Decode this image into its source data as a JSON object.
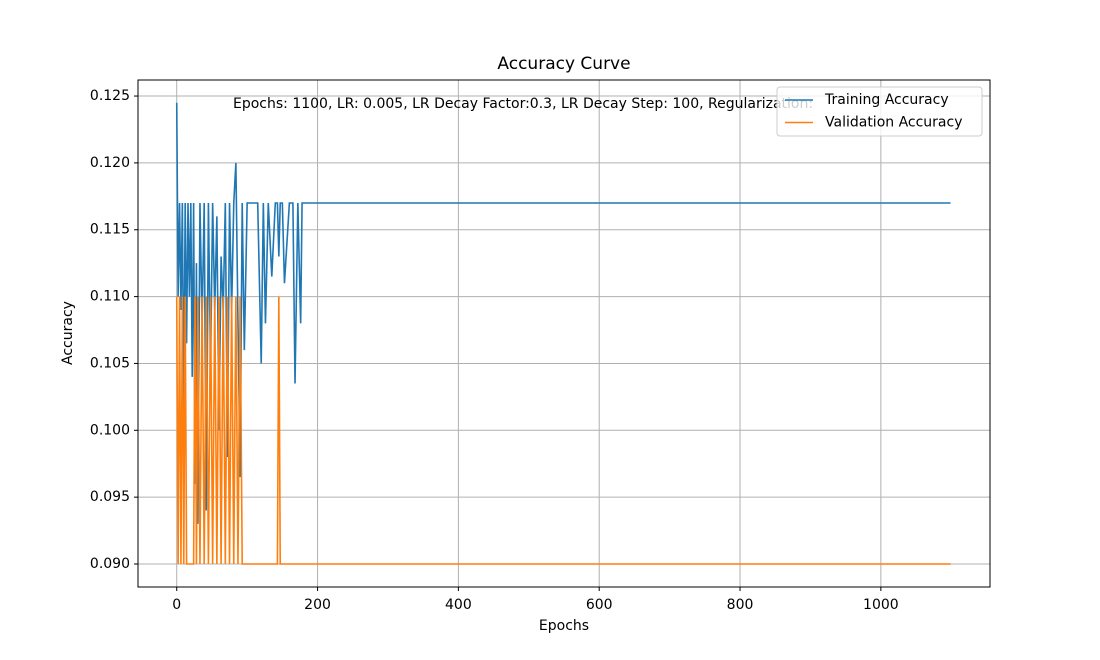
{
  "chart_data": {
    "type": "line",
    "title": "Accuracy Curve",
    "x_label": "Epochs",
    "y_label": "Accuracy",
    "annotation": "Epochs: 1100, LR: 0.005, LR Decay Factor:0.3, LR Decay Step: 100, Regularization:",
    "x": [
      0,
      2,
      4,
      6,
      8,
      10,
      12,
      14,
      16,
      18,
      20,
      22,
      24,
      26,
      28,
      30,
      33,
      36,
      39,
      42,
      45,
      48,
      51,
      54,
      57,
      60,
      63,
      66,
      69,
      72,
      75,
      78,
      81,
      84,
      87,
      90,
      93,
      96,
      100,
      105,
      115,
      120,
      123,
      126,
      130,
      135,
      140,
      143,
      145,
      147,
      150,
      153,
      160,
      165,
      168,
      172,
      176,
      178,
      180,
      1099
    ],
    "series": [
      {
        "name": "Training Accuracy",
        "color": "#1f77b4",
        "values": [
          0.1245,
          0.11,
          0.117,
          0.109,
          0.117,
          0.101,
          0.117,
          0.1065,
          0.117,
          0.11,
          0.117,
          0.104,
          0.117,
          0.096,
          0.1125,
          0.093,
          0.117,
          0.108,
          0.117,
          0.094,
          0.117,
          0.1045,
          0.117,
          0.109,
          0.116,
          0.1,
          0.113,
          0.109,
          0.117,
          0.098,
          0.117,
          0.109,
          0.117,
          0.12,
          0.108,
          0.0965,
          0.117,
          0.106,
          0.117,
          0.117,
          0.117,
          0.105,
          0.117,
          0.108,
          0.117,
          0.1115,
          0.117,
          0.117,
          0.113,
          0.117,
          0.117,
          0.111,
          0.117,
          0.117,
          0.1035,
          0.117,
          0.108,
          0.117,
          0.117,
          0.117
        ]
      },
      {
        "name": "Validation Accuracy",
        "color": "#ff7f0e",
        "values": [
          0.11,
          0.09,
          0.11,
          0.09,
          0.11,
          0.09,
          0.11,
          0.09,
          0.09,
          0.09,
          0.09,
          0.09,
          0.09,
          0.11,
          0.09,
          0.11,
          0.09,
          0.11,
          0.09,
          0.11,
          0.09,
          0.11,
          0.09,
          0.11,
          0.09,
          0.11,
          0.09,
          0.11,
          0.09,
          0.11,
          0.09,
          0.11,
          0.09,
          0.11,
          0.09,
          0.11,
          0.09,
          0.09,
          0.09,
          0.09,
          0.09,
          0.09,
          0.09,
          0.09,
          0.09,
          0.09,
          0.09,
          0.09,
          0.11,
          0.09,
          0.09,
          0.09,
          0.09,
          0.09,
          0.09,
          0.09,
          0.09,
          0.09,
          0.09,
          0.09
        ]
      }
    ],
    "xlim": [
      -55,
      1155
    ],
    "xticks": [
      0,
      200,
      400,
      600,
      800,
      1000
    ],
    "ylim": [
      0.08828,
      0.1262
    ],
    "yticks": [
      {
        "value": 0.09,
        "label": "0.090"
      },
      {
        "value": 0.095,
        "label": "0.095"
      },
      {
        "value": 0.1,
        "label": "0.100"
      },
      {
        "value": 0.105,
        "label": "0.105"
      },
      {
        "value": 0.11,
        "label": "0.110"
      },
      {
        "value": 0.115,
        "label": "0.115"
      },
      {
        "value": 0.12,
        "label": "0.120"
      },
      {
        "value": 0.125,
        "label": "0.125"
      }
    ],
    "grid": true,
    "legend": "upper-right"
  }
}
